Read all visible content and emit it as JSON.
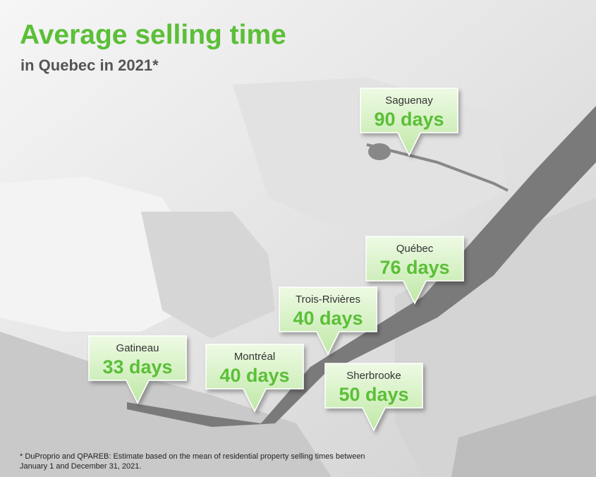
{
  "header": {
    "title": "Average selling time",
    "subtitle": "in Quebec in 2021*"
  },
  "callouts": [
    {
      "city": "Saguenay",
      "time": "90 days"
    },
    {
      "city": "Québec",
      "time": "76 days"
    },
    {
      "city": "Trois-Rivières",
      "time": "40 days"
    },
    {
      "city": "Gatineau",
      "time": "33 days"
    },
    {
      "city": "Montréal",
      "time": "40 days"
    },
    {
      "city": "Sherbrooke",
      "time": "50 days"
    }
  ],
  "footnote": [
    "* DuProprio and QPAREB: Estimate based on the mean of residential property selling times between",
    "January 1 and December 31, 2021."
  ]
}
